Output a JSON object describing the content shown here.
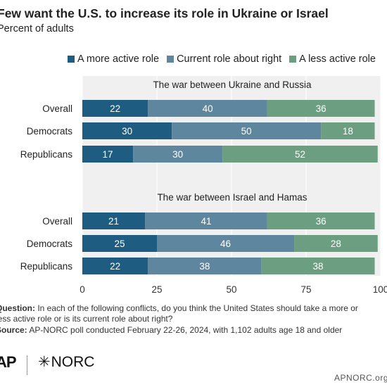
{
  "header": {
    "title": "Few want the U.S. to increase its role in Ukraine or Israel",
    "subtitle": "Percent of adults"
  },
  "legend": [
    {
      "label": "A more active role",
      "color": "#1f5c82"
    },
    {
      "label": "Current role about right",
      "color": "#5f869f"
    },
    {
      "label": "A less active role",
      "color": "#6c9e82"
    }
  ],
  "chart_data": {
    "type": "bar",
    "orientation": "horizontal",
    "stacked": true,
    "xlim": [
      0,
      100
    ],
    "xticks": [
      "0",
      "25",
      "50",
      "75",
      "100"
    ],
    "legend_position": "top",
    "colors": [
      "#1f5c82",
      "#5f869f",
      "#6c9e82"
    ],
    "series_names": [
      "A more active role",
      "Current role about right",
      "A less active role"
    ],
    "groups": [
      {
        "title": "The war between Ukraine and Russia",
        "rows": [
          {
            "category": "Overall",
            "values": [
              22,
              40,
              36
            ]
          },
          {
            "category": "Democrats",
            "values": [
              30,
              50,
              18
            ]
          },
          {
            "category": "Republicans",
            "values": [
              17,
              30,
              52
            ]
          }
        ]
      },
      {
        "title": "The war between Israel and Hamas",
        "rows": [
          {
            "category": "Overall",
            "values": [
              21,
              41,
              36
            ]
          },
          {
            "category": "Democrats",
            "values": [
              25,
              46,
              28
            ]
          },
          {
            "category": "Republicans",
            "values": [
              22,
              38,
              38
            ]
          }
        ]
      }
    ]
  },
  "notes": {
    "question_label": "Question:",
    "question_line1": " In each of the following conflicts, do you think the United States should take a more or",
    "question_line2": "less active role or is its current role about right?",
    "source_label": "Source:",
    "source_text": " AP-NORC poll conducted February 22-26, 2024, with 1,102 adults age 18 and older"
  },
  "footer": {
    "ap_logo": "AP",
    "norc_logo": "NORC",
    "site": "APNORC.org"
  }
}
